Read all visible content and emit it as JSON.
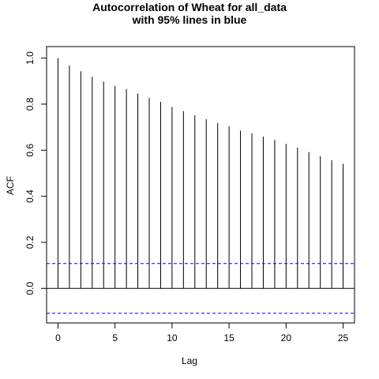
{
  "chart_data": {
    "type": "bar",
    "title": "Autocorrelation of Wheat for all_data",
    "subtitle": "with 95% lines in blue",
    "xlabel": "Lag",
    "ylabel": "ACF",
    "xlim": [
      -1,
      26
    ],
    "ylim": [
      -0.15,
      1.05
    ],
    "x_ticks": [
      0,
      5,
      10,
      15,
      20,
      25
    ],
    "y_ticks": [
      0.0,
      0.2,
      0.4,
      0.6,
      0.8,
      1.0
    ],
    "x_tick_labels": [
      "0",
      "5",
      "10",
      "15",
      "20",
      "25"
    ],
    "y_tick_labels": [
      "0.0",
      "0.2",
      "0.4",
      "0.6",
      "0.8",
      "1.0"
    ],
    "lags": [
      0,
      1,
      2,
      3,
      4,
      5,
      6,
      7,
      8,
      9,
      10,
      11,
      12,
      13,
      14,
      15,
      16,
      17,
      18,
      19,
      20,
      21,
      22,
      23,
      24,
      25
    ],
    "values": [
      1.0,
      0.968,
      0.943,
      0.919,
      0.898,
      0.88,
      0.865,
      0.846,
      0.827,
      0.81,
      0.788,
      0.77,
      0.752,
      0.735,
      0.718,
      0.703,
      0.685,
      0.673,
      0.659,
      0.645,
      0.628,
      0.611,
      0.592,
      0.574,
      0.557,
      0.541
    ],
    "confidence_bounds": [
      0.108,
      -0.108
    ],
    "confidence_color": "#0000ff",
    "zero_line": 0.0
  }
}
